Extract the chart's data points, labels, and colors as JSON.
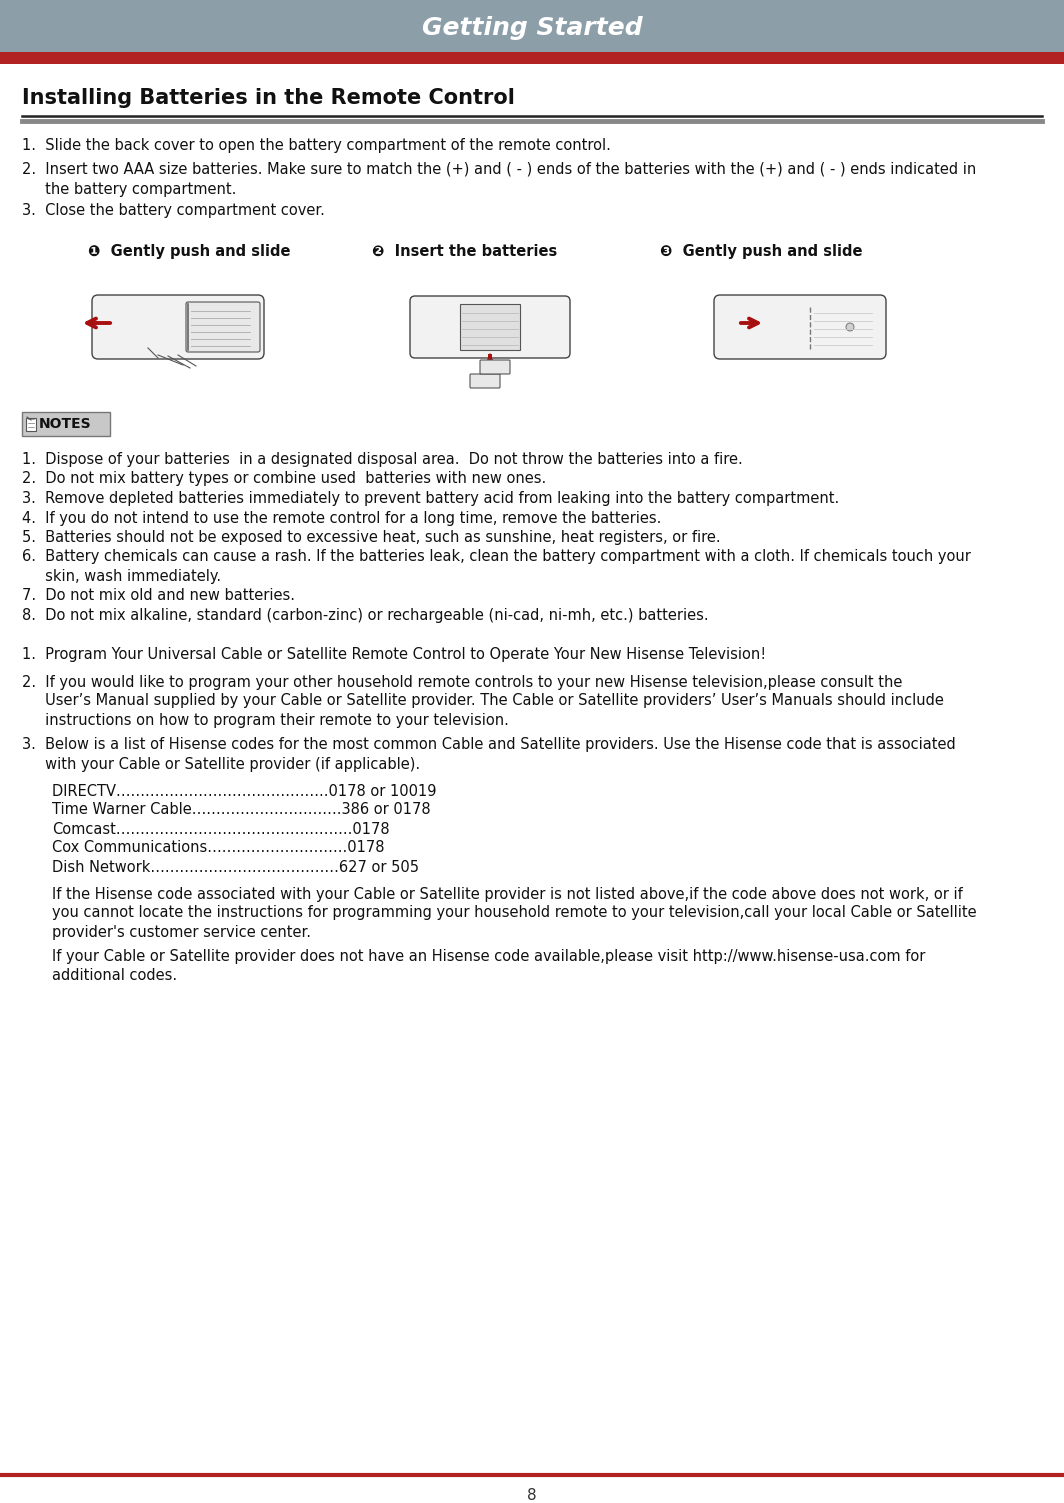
{
  "page_bg": "#ffffff",
  "header_gray": "#8c9ea8",
  "header_red": "#b22222",
  "header_text": "Getting Started",
  "header_text_color": "#ffffff",
  "section_title": "Installing Batteries in the Remote Control",
  "section_title_color": "#111111",
  "body_text_color": "#111111",
  "notes_bg": "#d0d0d0",
  "notes_border": "#888888",
  "notes_title": "NOTES",
  "step1_label": "❶  Gently push and slide",
  "step2_label": "❷  Insert the batteries",
  "step3_label": "❸  Gently push and slide",
  "install_step1": "1.  Slide the back cover to open the battery compartment of the remote control.",
  "install_step2a": "2.  Insert two AAA size batteries. Make sure to match the (+) and ( - ) ends of the batteries with the (+) and ( - ) ends indicated in",
  "install_step2b": "     the battery compartment.",
  "install_step3": "3.  Close the battery compartment cover.",
  "notes_items": [
    "1.  Dispose of your batteries  in a designated disposal area.  Do not throw the batteries into a fire.",
    "2.  Do not mix battery types or combine used  batteries with new ones.",
    "3.  Remove depleted batteries immediately to prevent battery acid from leaking into the battery compartment.",
    "4.  If you do not intend to use the remote control for a long time, remove the batteries.",
    "5.  Batteries should not be exposed to excessive heat, such as sunshine, heat registers, or fire.",
    "6.  Battery chemicals can cause a rash. If the batteries leak, clean the battery compartment with a cloth. If chemicals touch your",
    "     skin, wash immediately.",
    "7.  Do not mix old and new batteries.",
    "8.  Do not mix alkaline, standard (carbon-zinc) or rechargeable (ni-cad, ni-mh, etc.) batteries."
  ],
  "program_item1": "1.  Program Your Universal Cable or Satellite Remote Control to Operate Your New Hisense Television!",
  "program_item2a": "2.  If you would like to program your other household remote controls to your new Hisense television,please consult the",
  "program_item2b": "     User’s Manual supplied by your Cable or Satellite provider. The Cable or Satellite providers’ User’s Manuals should include",
  "program_item2c": "     instructions on how to program their remote to your television.",
  "program_item3a": "3.  Below is a list of Hisense codes for the most common Cable and Satellite providers. Use the Hisense code that is associated",
  "program_item3b": "     with your Cable or Satellite provider (if applicable).",
  "codes": [
    "DIRECTV……………………………………..0178 or 10019",
    "Time Warner Cable………………………….386 or 0178",
    "Comcast………………………………………....0178",
    "Cox Communications………………………..0178",
    "Dish Network…………………………………627 or 505"
  ],
  "code_note1a": "If the Hisense code associated with your Cable or Satellite provider is not listed above,if the code above does not work, or if",
  "code_note1b": "you cannot locate the instructions for programming your household remote to your television,call your local Cable or Satellite",
  "code_note1c": "provider's customer service center.",
  "code_note2a": "If your Cable or Satellite provider does not have an Hisense code available,please visit http://www.hisense-usa.com for",
  "code_note2b": "additional codes.",
  "page_number": "8",
  "red_color": "#a81010",
  "dark_line": "#333333",
  "gray_line": "#888888"
}
